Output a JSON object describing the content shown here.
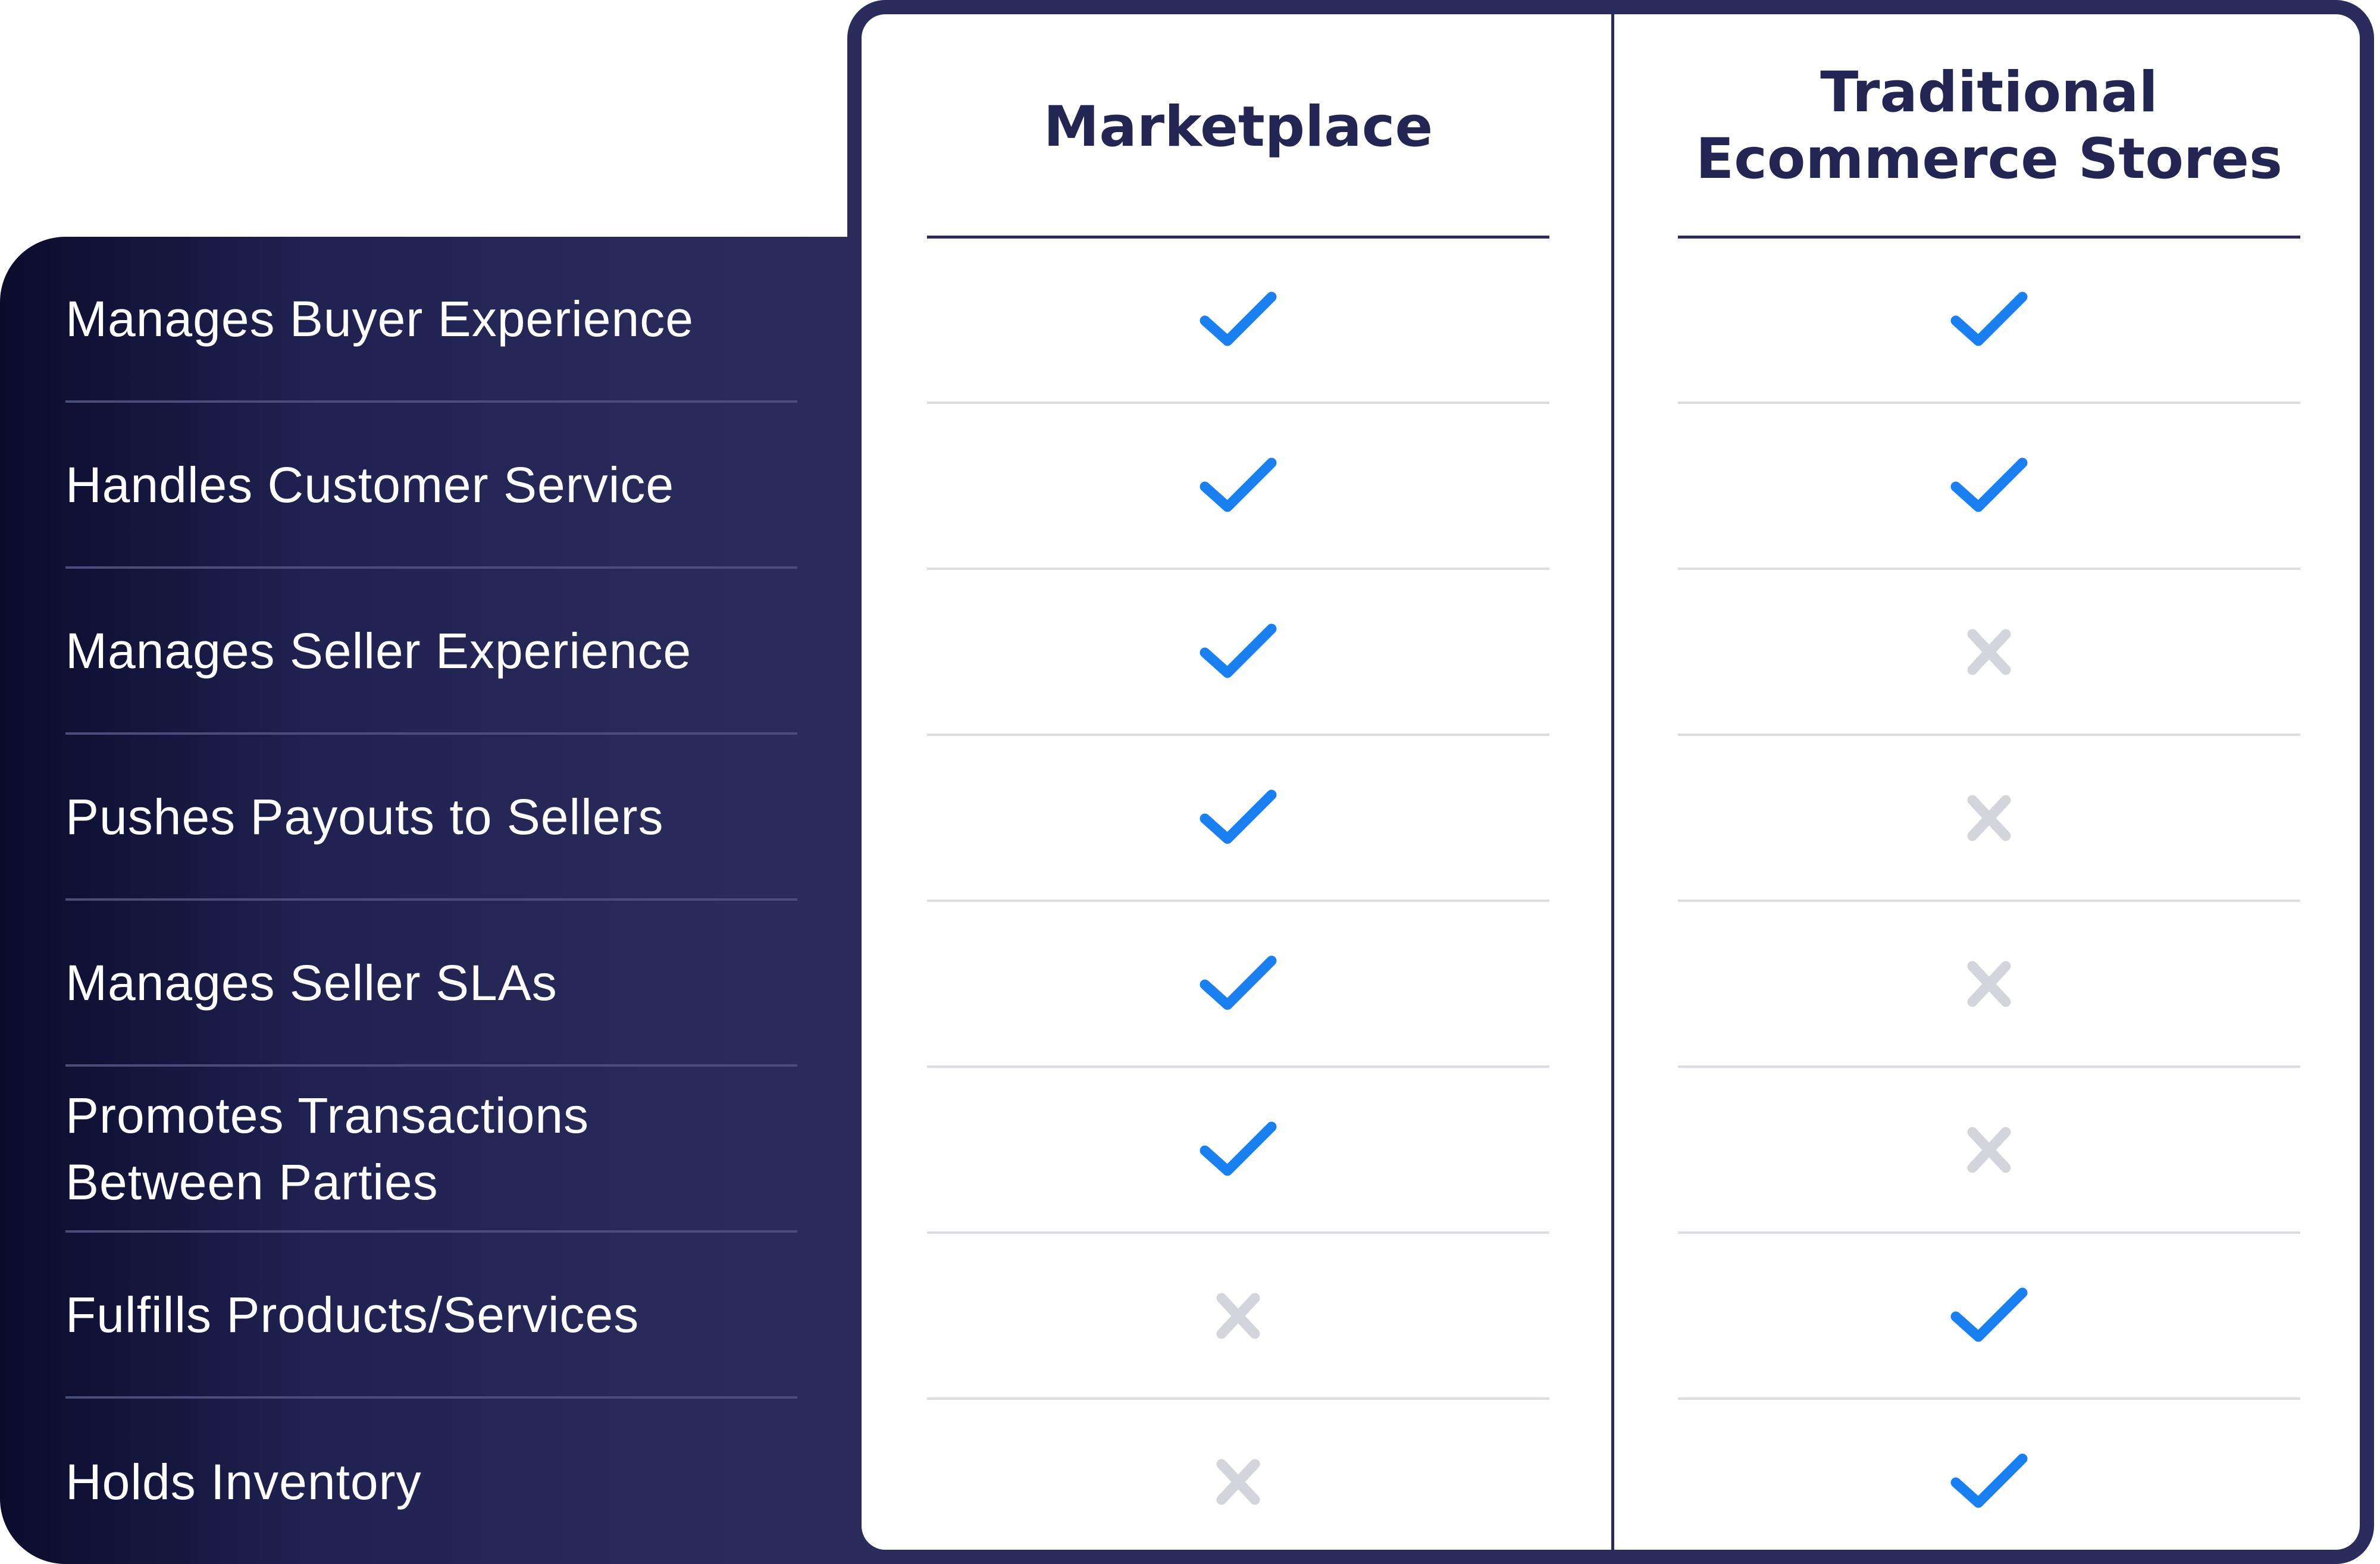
{
  "columns": {
    "marketplace": "Marketplace",
    "traditional_line1": "Traditional",
    "traditional_line2": "Ecommerce Stores"
  },
  "features": [
    {
      "label": "Manages Buyer Experience",
      "marketplace": "check",
      "traditional": "check"
    },
    {
      "label": "Handles Customer Service",
      "marketplace": "check",
      "traditional": "check"
    },
    {
      "label": "Manages Seller Experience",
      "marketplace": "check",
      "traditional": "cross"
    },
    {
      "label": "Pushes Payouts to Sellers",
      "marketplace": "check",
      "traditional": "cross"
    },
    {
      "label": "Manages Seller SLAs",
      "marketplace": "check",
      "traditional": "cross"
    },
    {
      "label": "Promotes Transactions",
      "label_line2": "Between Parties",
      "marketplace": "check",
      "traditional": "cross"
    },
    {
      "label": "Fulfills Products/Services",
      "marketplace": "cross",
      "traditional": "check"
    },
    {
      "label": "Holds Inventory",
      "marketplace": "cross",
      "traditional": "check"
    }
  ],
  "icons": {
    "check": "check-icon",
    "cross": "cross-icon"
  },
  "colors": {
    "panel_dark": "#0b0b2c",
    "panel": "#2b2d5c",
    "card_border": "#2a2c5c",
    "title_text": "#232552",
    "check": "#1a7ff0",
    "cross": "#d4d4dc",
    "row_rule": "#dcdce2"
  }
}
